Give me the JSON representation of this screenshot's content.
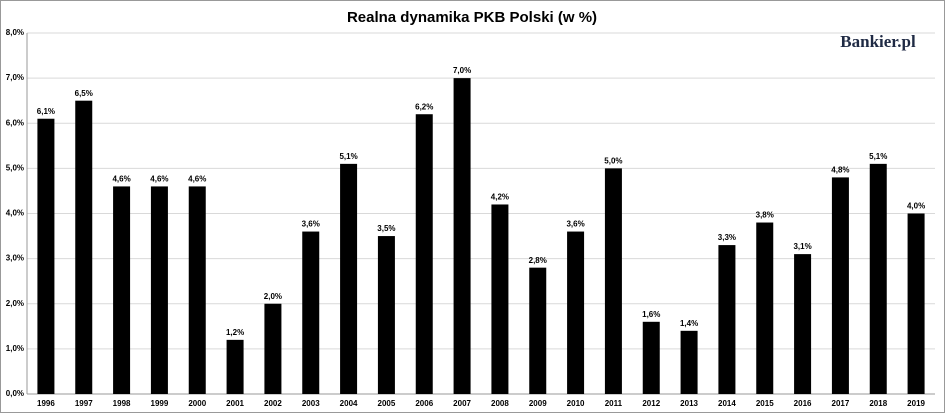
{
  "chart_data": {
    "type": "bar",
    "title": "Realna dynamika PKB Polski (w %)",
    "watermark": "Bankier.pl",
    "categories": [
      "1996",
      "1997",
      "1998",
      "1999",
      "2000",
      "2001",
      "2002",
      "2003",
      "2004",
      "2005",
      "2006",
      "2007",
      "2008",
      "2009",
      "2010",
      "2011",
      "2012",
      "2013",
      "2014",
      "2015",
      "2016",
      "2017",
      "2018",
      "2019"
    ],
    "values": [
      6.1,
      6.5,
      4.6,
      4.6,
      4.6,
      1.2,
      2.0,
      3.6,
      5.1,
      3.5,
      6.2,
      7.0,
      4.2,
      2.8,
      3.6,
      5.0,
      1.6,
      1.4,
      3.3,
      3.8,
      3.1,
      4.8,
      5.1,
      4.0
    ],
    "value_labels": [
      "6,1%",
      "6,5%",
      "4,6%",
      "4,6%",
      "4,6%",
      "1,2%",
      "2,0%",
      "3,6%",
      "5,1%",
      "3,5%",
      "6,2%",
      "7,0%",
      "4,2%",
      "2,8%",
      "3,6%",
      "5,0%",
      "1,6%",
      "1,4%",
      "3,3%",
      "3,8%",
      "3,1%",
      "4,8%",
      "5,1%",
      "4,0%"
    ],
    "color": "#000000",
    "ylim": [
      0,
      8
    ],
    "yticks": [
      {
        "value": 0,
        "label": "0,0%"
      },
      {
        "value": 1,
        "label": "1,0%"
      },
      {
        "value": 2,
        "label": "2,0%"
      },
      {
        "value": 3,
        "label": "3,0%"
      },
      {
        "value": 4,
        "label": "4,0%"
      },
      {
        "value": 5,
        "label": "5,0%"
      },
      {
        "value": 6,
        "label": "6,0%"
      },
      {
        "value": 7,
        "label": "7,0%"
      },
      {
        "value": 8,
        "label": "8,0%"
      }
    ],
    "grid": true
  }
}
